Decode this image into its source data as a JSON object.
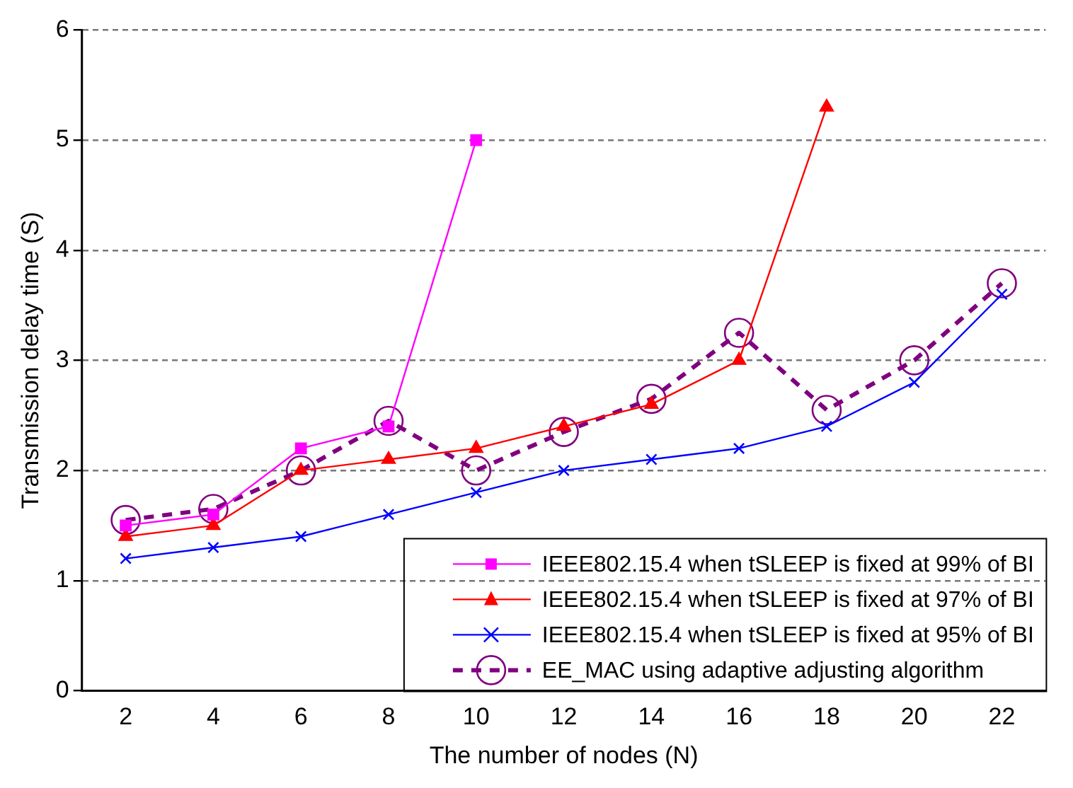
{
  "chart_data": {
    "type": "line",
    "xlabel": "The number of nodes (N)",
    "ylabel": "Transmission delay time (S)",
    "categories": [
      "2",
      "4",
      "6",
      "8",
      "10",
      "12",
      "14",
      "16",
      "18",
      "20",
      "22"
    ],
    "ylim": [
      0,
      6
    ],
    "yticks": [
      0,
      1,
      2,
      3,
      4,
      5,
      6
    ],
    "grid": "y",
    "legend": "bottom right",
    "series": [
      {
        "name": "IEEE802.15.4 when tSLEEP is fixed at 99% of BI",
        "color": "#ff00ff",
        "marker": "square",
        "line_style": "solid",
        "values": [
          1.5,
          1.6,
          2.2,
          2.4,
          5.0,
          null,
          null,
          null,
          null,
          null,
          null
        ]
      },
      {
        "name": "IEEE802.15.4 when tSLEEP is fixed at 97% of BI",
        "color": "#ff0000",
        "marker": "triangle",
        "line_style": "solid",
        "values": [
          1.4,
          1.5,
          2.0,
          2.1,
          2.2,
          2.4,
          2.6,
          3.0,
          5.3,
          null,
          null
        ]
      },
      {
        "name": "IEEE802.15.4 when tSLEEP is fixed at 95% of BI",
        "color": "#0000ff",
        "marker": "cross",
        "line_style": "solid",
        "values": [
          1.2,
          1.3,
          1.4,
          1.6,
          1.8,
          2.0,
          2.1,
          2.2,
          2.4,
          2.8,
          3.6
        ]
      },
      {
        "name": "EE_MAC using adaptive adjusting algorithm",
        "color": "#800080",
        "marker": "circle",
        "line_style": "dashed",
        "values": [
          1.55,
          1.65,
          2.0,
          2.45,
          2.0,
          2.35,
          2.65,
          3.25,
          2.55,
          3.0,
          3.7
        ]
      }
    ]
  }
}
